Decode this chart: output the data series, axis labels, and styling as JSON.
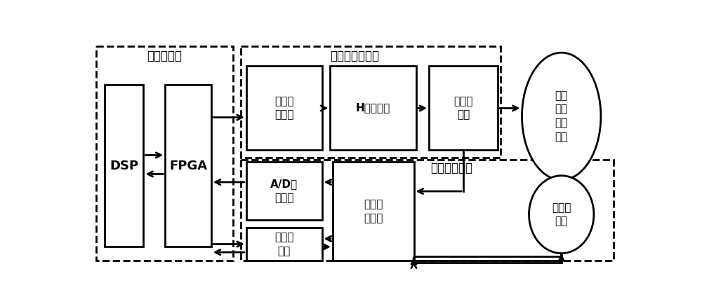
{
  "figsize": [
    10.0,
    4.34
  ],
  "dpi": 100,
  "lw": 2.0,
  "bg": "#ffffff",
  "blocks": {
    "DSP": [
      28,
      90,
      100,
      390
    ],
    "FPGA": [
      140,
      90,
      225,
      390
    ],
    "ISO": [
      290,
      55,
      430,
      210
    ],
    "HBRIDGE": [
      445,
      55,
      605,
      210
    ],
    "CURRENT": [
      628,
      55,
      755,
      210
    ],
    "ADC": [
      290,
      233,
      430,
      340
    ],
    "AXIS": [
      290,
      355,
      430,
      415
    ],
    "SIGNAL": [
      450,
      233,
      600,
      415
    ]
  },
  "block_labels": {
    "DSP": [
      "DSP",
      13
    ],
    "FPGA": [
      "FPGA",
      13
    ],
    "ISO": [
      "隔离驱\n动电路",
      11
    ],
    "HBRIDGE": [
      "H桥逃变器",
      11
    ],
    "CURRENT": [
      "电流传\n感器",
      11
    ],
    "ADC": [
      "A/D转\n换电路",
      11
    ],
    "AXIS": [
      "轴角变\n换器",
      11
    ],
    "SIGNAL": [
      "信号调\n理电路",
      11
    ]
  },
  "ellipses": {
    "MOTOR": [
      873,
      148,
      73,
      118
    ],
    "RESOLVER": [
      873,
      330,
      60,
      72
    ]
  },
  "ellipse_labels": {
    "MOTOR": [
      "六相\n永磁\n容错\n电机",
      11
    ],
    "RESOLVER": [
      "旋转变\n压器",
      11
    ]
  },
  "dash_boxes": {
    "controller": [
      12,
      18,
      265,
      416
    ],
    "power": [
      280,
      18,
      760,
      225
    ],
    "detect": [
      280,
      228,
      970,
      416
    ]
  },
  "dash_labels": {
    "controller": [
      "容错控制器",
      138,
      36,
      12
    ],
    "power": [
      "容错功率驱动器",
      490,
      36,
      12
    ],
    "detect": [
      "信号检测电路",
      670,
      244,
      12
    ]
  }
}
